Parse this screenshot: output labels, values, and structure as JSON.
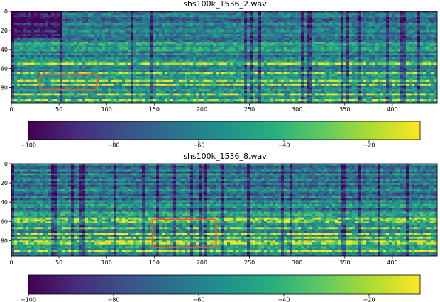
{
  "chart_data": [
    {
      "type": "heatmap",
      "title": "shs100k_1536_2.wav",
      "x_ticks": [
        0,
        50,
        100,
        150,
        200,
        250,
        300,
        350,
        400
      ],
      "x_tick_labels": [
        "0",
        "50",
        "100",
        "150",
        "200",
        "250",
        "300",
        "350",
        "400"
      ],
      "y_ticks": [
        0,
        20,
        40,
        60,
        80
      ],
      "y_tick_labels": [
        "0",
        "20",
        "40",
        "60",
        "80"
      ],
      "xlim": [
        0,
        447
      ],
      "ylim": [
        96,
        0
      ],
      "colormap": "viridis",
      "colorbar": {
        "orientation": "horizontal",
        "range": [
          -100,
          -8
        ],
        "ticks": [
          -100,
          -80,
          -60,
          -40,
          -20
        ],
        "tick_labels": [
          "−100",
          "−80",
          "−60",
          "−40",
          "−20"
        ]
      },
      "highlight_box": {
        "x": [
          30,
          90
        ],
        "y": [
          66,
          82
        ],
        "color": "#ef5a2a"
      }
    },
    {
      "type": "heatmap",
      "title": "shs100k_1536_8.wav",
      "x_ticks": [
        0,
        50,
        100,
        150,
        200,
        250,
        300,
        350,
        400
      ],
      "x_tick_labels": [
        "0",
        "50",
        "100",
        "150",
        "200",
        "250",
        "300",
        "350",
        "400"
      ],
      "y_ticks": [
        0,
        20,
        40,
        60,
        80
      ],
      "y_tick_labels": [
        "0",
        "20",
        "40",
        "60",
        "80"
      ],
      "xlim": [
        0,
        447
      ],
      "ylim": [
        96,
        0
      ],
      "colormap": "viridis",
      "colorbar": {
        "orientation": "horizontal",
        "range": [
          -100,
          -8
        ],
        "ticks": [
          -100,
          -80,
          -60,
          -40,
          -20
        ],
        "tick_labels": [
          "−100",
          "−80",
          "−60",
          "−40",
          "−20"
        ]
      },
      "highlight_box": {
        "x": [
          148,
          215
        ],
        "y": [
          58,
          87
        ],
        "color": "#ef5a2a"
      }
    }
  ]
}
